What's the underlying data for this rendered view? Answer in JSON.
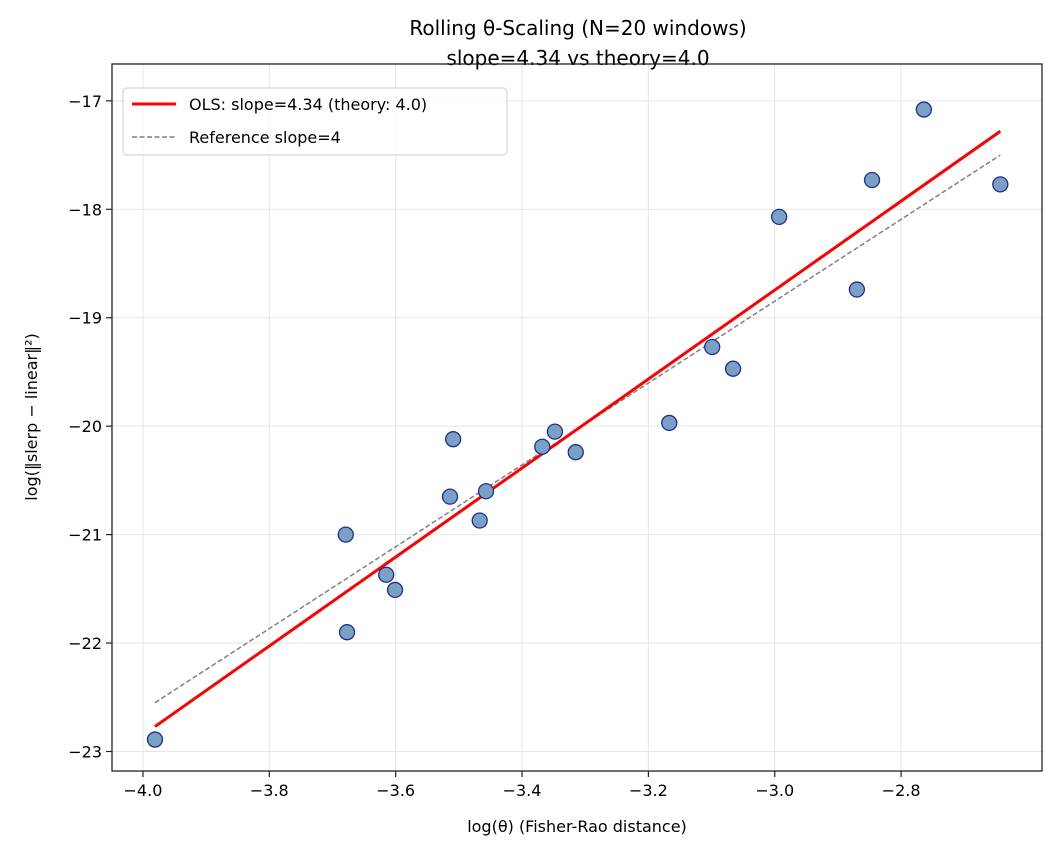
{
  "chart_data": {
    "type": "scatter",
    "title": "Rolling θ-Scaling (N=20 windows)",
    "subtitle": "slope=4.34 vs theory=4.0",
    "xlabel": "log(θ) (Fisher-Rao distance)",
    "ylabel": "log(‖slerp − linear‖²)",
    "xlim": [
      -4.049,
      -2.577
    ],
    "ylim": [
      -23.18,
      -16.66
    ],
    "xticks": [
      -4.0,
      -3.8,
      -3.6,
      -3.4,
      -3.2,
      -3.0,
      -2.8
    ],
    "xtick_labels": [
      "−4.0",
      "−3.8",
      "−3.6",
      "−3.4",
      "−3.2",
      "−3.0",
      "−2.8"
    ],
    "yticks": [
      -17,
      -18,
      -19,
      -20,
      -21,
      -22,
      -23
    ],
    "ytick_labels": [
      "−17",
      "−18",
      "−19",
      "−20",
      "−21",
      "−22",
      "−23"
    ],
    "grid": true,
    "legend_position": "top-left",
    "points": {
      "x": [
        -3.981,
        -3.679,
        -3.677,
        -3.615,
        -3.601,
        -3.514,
        -3.509,
        -3.467,
        -3.457,
        -3.368,
        -3.348,
        -3.315,
        -3.167,
        -3.099,
        -3.066,
        -2.993,
        -2.87,
        -2.846,
        -2.764,
        -2.643
      ],
      "y": [
        -22.89,
        -21.0,
        -21.9,
        -21.37,
        -21.51,
        -20.65,
        -20.12,
        -20.87,
        -20.6,
        -20.19,
        -20.05,
        -20.24,
        -19.97,
        -19.27,
        -19.47,
        -18.07,
        -18.74,
        -17.73,
        -17.08,
        -17.77
      ],
      "fill": "#7ba0c6",
      "edge": "#1f2f8f"
    },
    "lines": [
      {
        "name": "OLS: slope=4.34 (theory: 4.0)",
        "x": [
          -3.981,
          -2.643
        ],
        "y": [
          -22.77,
          -17.28
        ],
        "color": "#ff0000",
        "style": "solid"
      },
      {
        "name": "Reference slope=4",
        "x": [
          -3.981,
          -2.643
        ],
        "y": [
          -22.55,
          -17.5
        ],
        "color": "#808080",
        "style": "dashed"
      }
    ]
  }
}
